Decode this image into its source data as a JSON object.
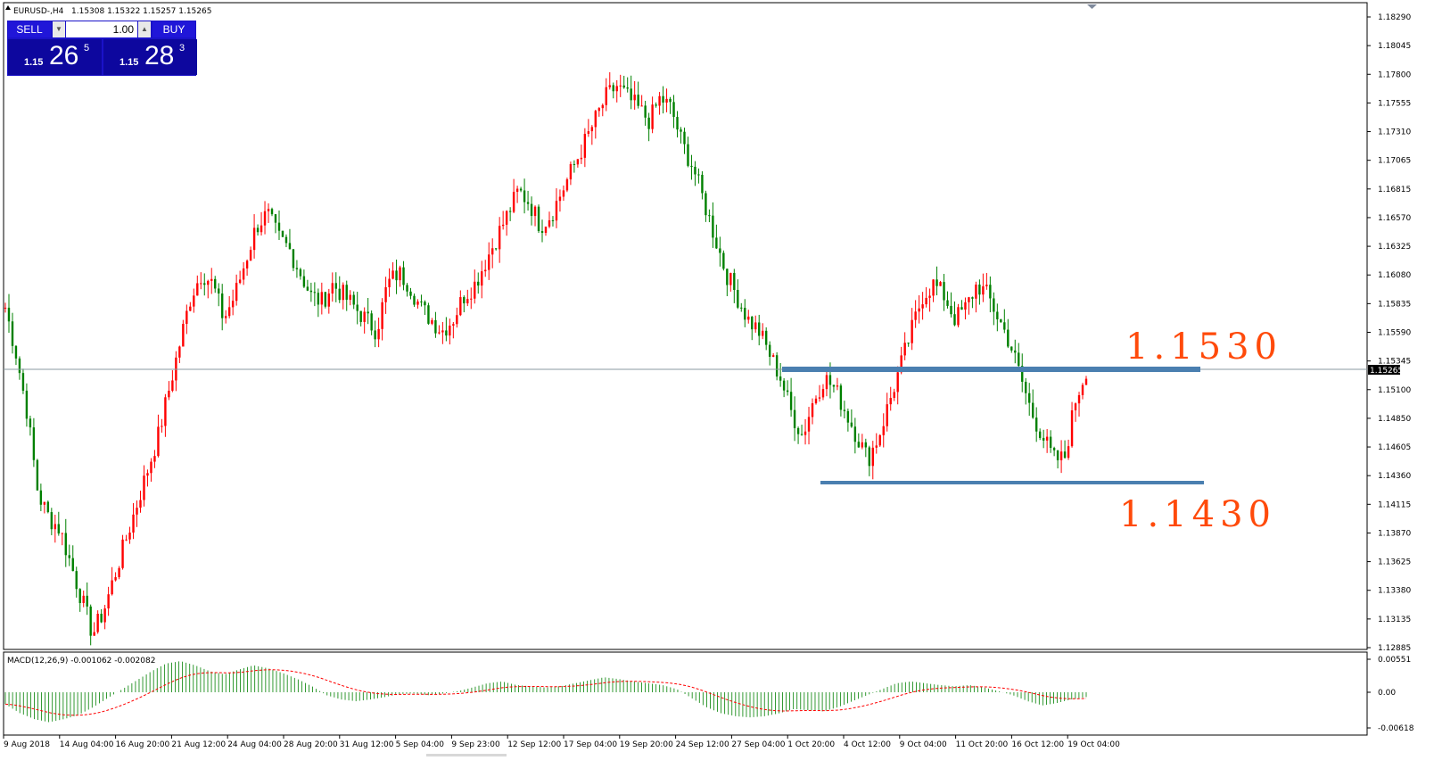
{
  "header": {
    "symbol_label": "EURUSD-,H4",
    "ohlc_label": "1.15308 1.15322 1.15257 1.15265"
  },
  "trade_panel": {
    "sell_label": "SELL",
    "buy_label": "BUY",
    "lot_value": "1.00",
    "spin_down_icon": "triangle-down",
    "spin_up_icon": "triangle-up",
    "bid_prefix": "1.15",
    "bid_big": "26",
    "bid_sup": "5",
    "ask_prefix": "1.15",
    "ask_big": "28",
    "ask_sup": "3"
  },
  "price_axis": {
    "ticks": [
      "1.18290",
      "1.18045",
      "1.17800",
      "1.17555",
      "1.17310",
      "1.17065",
      "1.16815",
      "1.16570",
      "1.16325",
      "1.16080",
      "1.15835",
      "1.15590",
      "1.15345",
      "1.15100",
      "1.14850",
      "1.14605",
      "1.14360",
      "1.14115",
      "1.13870",
      "1.13625",
      "1.13380",
      "1.13135",
      "1.12885"
    ],
    "current_price": "1.15265"
  },
  "macd": {
    "label": "MACD(12,26,9) -0.001062 -0.002082",
    "ticks": [
      "0.00551",
      "0.00",
      "-0.00618"
    ]
  },
  "time_axis": {
    "labels": [
      "9 Aug 2018",
      "14 Aug 04:00",
      "16 Aug 20:00",
      "21 Aug 12:00",
      "24 Aug 04:00",
      "28 Aug 20:00",
      "31 Aug 12:00",
      "5 Sep 04:00",
      "9 Sep 23:00",
      "12 Sep 12:00",
      "17 Sep 04:00",
      "19 Sep 20:00",
      "24 Sep 12:00",
      "27 Sep 04:00",
      "1 Oct 20:00",
      "4 Oct 12:00",
      "9 Oct 04:00",
      "11 Oct 20:00",
      "16 Oct 12:00",
      "19 Oct 04:00"
    ]
  },
  "annotations": {
    "resistance_label": "1.1530",
    "support_label": "1.1430",
    "resistance_price": 1.153,
    "support_price": 1.143
  },
  "colors": {
    "bull": "#ff0000",
    "bear": "#008000",
    "level_line": "#4a7fb0",
    "annotation": "#ff4a0a",
    "macd_signal": "#ff0000",
    "macd_hist": "#008000",
    "panel_bg": "#1a12c8"
  },
  "chart_data": {
    "type": "candlestick",
    "title": "EURUSD-,H4",
    "ylim": [
      1.12885,
      1.1829
    ],
    "series_close": [
      1.158,
      1.154,
      1.149,
      1.142,
      1.14,
      1.139,
      1.136,
      1.133,
      1.13,
      1.132,
      1.135,
      1.138,
      1.141,
      1.144,
      1.147,
      1.151,
      1.155,
      1.159,
      1.161,
      1.16,
      1.157,
      1.159,
      1.162,
      1.165,
      1.166,
      1.164,
      1.163,
      1.161,
      1.159,
      1.1585,
      1.16,
      1.159,
      1.158,
      1.157,
      1.156,
      1.16,
      1.161,
      1.16,
      1.158,
      1.157,
      1.156,
      1.157,
      1.159,
      1.16,
      1.162,
      1.164,
      1.166,
      1.168,
      1.167,
      1.165,
      1.166,
      1.168,
      1.17,
      1.172,
      1.174,
      1.176,
      1.177,
      1.176,
      1.175,
      1.174,
      1.176,
      1.175,
      1.172,
      1.17,
      1.167,
      1.164,
      1.161,
      1.159,
      1.157,
      1.156,
      1.154,
      1.152,
      1.149,
      1.147,
      1.15,
      1.152,
      1.151,
      1.149,
      1.147,
      1.145,
      1.147,
      1.15,
      1.153,
      1.156,
      1.159,
      1.16,
      1.159,
      1.157,
      1.158,
      1.16,
      1.159,
      1.157,
      1.155,
      1.152,
      1.149,
      1.147,
      1.145,
      1.145,
      1.15,
      1.1527
    ],
    "macd_hist": [
      -0.002,
      -0.0035,
      -0.0045,
      -0.005,
      -0.0045,
      -0.0038,
      -0.0025,
      -0.001,
      0.0005,
      0.002,
      0.0035,
      0.0048,
      0.0052,
      0.0045,
      0.0035,
      0.003,
      0.0038,
      0.0045,
      0.004,
      0.0032,
      0.0022,
      0.001,
      -0.0005,
      -0.0012,
      -0.0015,
      -0.0012,
      -0.0008,
      -0.0003,
      -0.0002,
      -0.0005,
      -0.0002,
      0.0002,
      0.0008,
      0.0015,
      0.0018,
      0.0012,
      0.001,
      0.0008,
      0.001,
      0.0015,
      0.002,
      0.0025,
      0.0022,
      0.0018,
      0.0015,
      0.0012,
      0.0005,
      -0.001,
      -0.0025,
      -0.0035,
      -0.004,
      -0.0042,
      -0.004,
      -0.0035,
      -0.0028,
      -0.003,
      -0.0032,
      -0.0025,
      -0.0015,
      -0.0005,
      0.0005,
      0.0015,
      0.0018,
      0.0015,
      0.0012,
      0.001,
      0.0012,
      0.0008,
      0.0002,
      -0.0005,
      -0.0015,
      -0.0022,
      -0.0018,
      -0.0012,
      -0.0008
    ]
  }
}
